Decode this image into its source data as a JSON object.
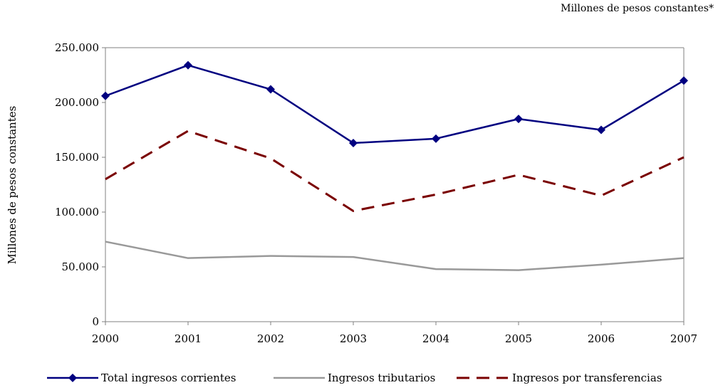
{
  "note": "Millones de pesos constantes*",
  "colors": {
    "total": "#000080",
    "tributarios": "#999999",
    "transferencias": "#7a0000",
    "axis": "#808080"
  },
  "chart_data": {
    "type": "line",
    "ylabel": "Millones de pesos constantes",
    "xlabel": "",
    "categories": [
      "2000",
      "2001",
      "2002",
      "2003",
      "2004",
      "2005",
      "2006",
      "2007"
    ],
    "ylim": [
      0,
      250000
    ],
    "yticks": [
      "0",
      "50.000",
      "100.000",
      "150.000",
      "200.000",
      "250.000"
    ],
    "grid": false,
    "legend_position": "bottom",
    "series": [
      {
        "name": "Total ingresos corrientes",
        "values": [
          206000,
          234000,
          212000,
          163000,
          167000,
          185000,
          175000,
          220000
        ]
      },
      {
        "name": "Ingresos tributarios",
        "values": [
          73000,
          58000,
          60000,
          59000,
          48000,
          47000,
          52000,
          58000
        ]
      },
      {
        "name": "Ingresos por transferencias",
        "values": [
          130000,
          174000,
          149000,
          101000,
          116000,
          134000,
          115000,
          150000
        ]
      }
    ]
  }
}
